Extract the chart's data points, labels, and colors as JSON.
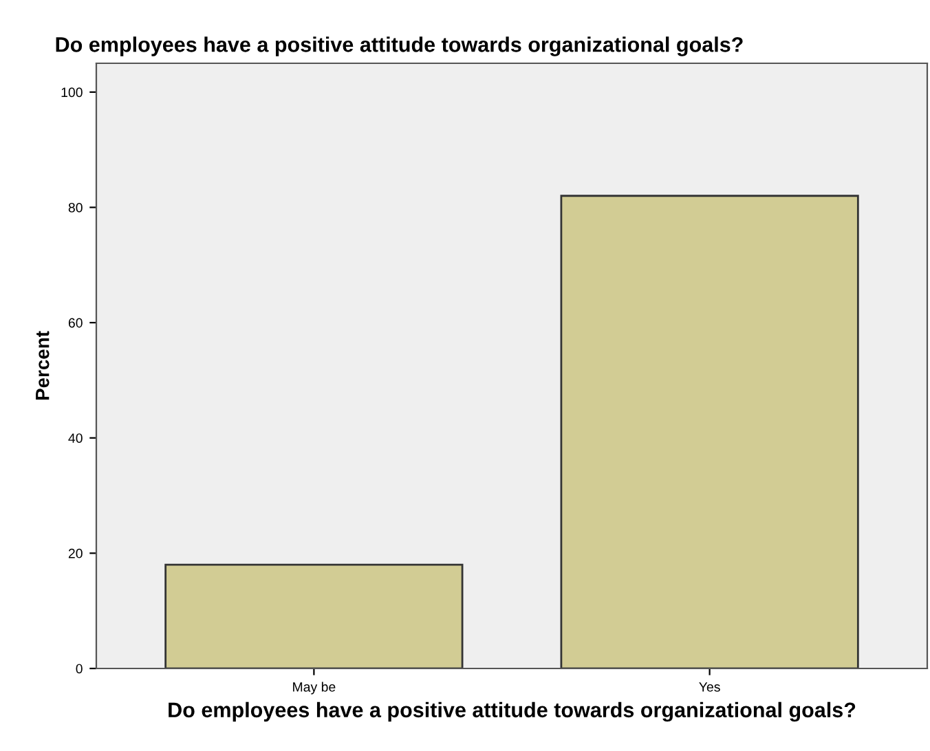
{
  "chart_data": {
    "type": "bar",
    "title": "Do employees have a positive attitude towards organizational goals?",
    "xlabel": "Do employees have a positive attitude towards organizational goals?",
    "ylabel": "Percent",
    "categories": [
      "May be",
      "Yes"
    ],
    "values": [
      18,
      82
    ],
    "color": "#d2cc94",
    "ylim": [
      0,
      105
    ],
    "yticks": [
      0,
      20,
      40,
      60,
      80,
      100
    ],
    "grid": false
  }
}
